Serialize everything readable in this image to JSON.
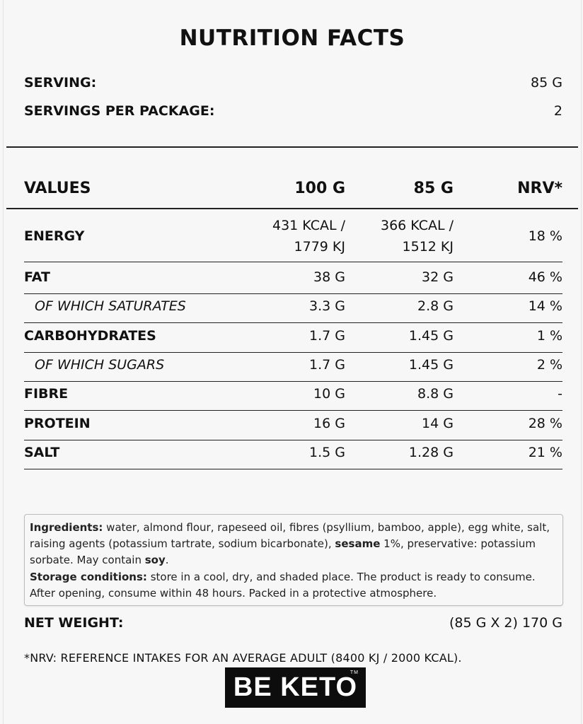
{
  "title": "NUTRITION FACTS",
  "serving": {
    "label": "SERVING:",
    "value": "85 G"
  },
  "servings_per_package": {
    "label": "SERVINGS PER PACKAGE:",
    "value": "2"
  },
  "table": {
    "headers": [
      "VALUES",
      "100 G",
      "85 G",
      "NRV*"
    ],
    "energy": {
      "name": "ENERGY",
      "v100_line1": "431 KCAL /",
      "v100_line2": "1779 KJ",
      "v85_line1": "366 KCAL /",
      "v85_line2": "1512 KJ",
      "nrv": "18 %"
    },
    "rows": [
      {
        "name": "FAT",
        "v100": "38 G",
        "v85": "32 G",
        "nrv": "46 %"
      },
      {
        "name": "OF WHICH SATURATES",
        "v100": "3.3 G",
        "v85": "2.8 G",
        "nrv": "14 %"
      },
      {
        "name": "CARBOHYDRATES",
        "v100": "1.7 G",
        "v85": "1.45 G",
        "nrv": "1 %"
      },
      {
        "name": "OF WHICH SUGARS",
        "v100": "1.7 G",
        "v85": "1.45 G",
        "nrv": "2 %"
      },
      {
        "name": "FIBRE",
        "v100": "10 G",
        "v85": "8.8 G",
        "nrv": "-"
      },
      {
        "name": "PROTEIN",
        "v100": "16 G",
        "v85": "14 G",
        "nrv": "28 %"
      },
      {
        "name": "SALT",
        "v100": "1.5 G",
        "v85": "1.28 G",
        "nrv": "21 %"
      }
    ]
  },
  "ingredients": {
    "label": "Ingredients:",
    "text_1": " water, almond flour, rapeseed oil, fibres (psyllium, bamboo, apple), egg white, salt, raising agents (potassium tartrate, sodium bicarbonate), ",
    "allergen_1": "sesame",
    "text_2": " 1%, preservative: potassium sorbate. May contain ",
    "allergen_2": "soy",
    "text_3": "."
  },
  "storage": {
    "label": "Storage conditions:",
    "text": " store in a cool, dry, and shaded place. The product is ready to consume. After opening, consume within 48 hours. Packed in a protective atmosphere."
  },
  "net_weight": {
    "label": "NET WEIGHT:",
    "value": "(85 G X 2) 170 G"
  },
  "footnote": "*NRV: REFERENCE INTAKES FOR AN AVERAGE ADULT (8400 KJ / 2000 KCAL).",
  "logo": {
    "text": "BE KETO",
    "tm": "TM"
  }
}
